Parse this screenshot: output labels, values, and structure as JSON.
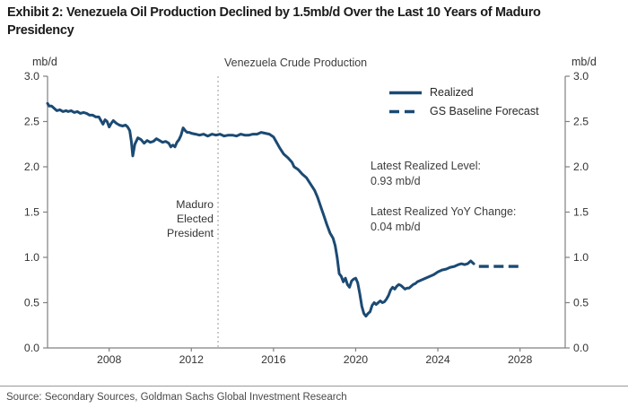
{
  "header": {
    "title_line1": "Exhibit 2: Venezuela Oil Production Declined by 1.5mb/d Over the Last 10 Years of Maduro",
    "title_line2": "Presidency"
  },
  "chart": {
    "title": "Venezuela Crude Production",
    "unit_left": "mb/d",
    "unit_right": "mb/d"
  },
  "annotations": {
    "level_label": "Latest Realized Level:",
    "level_value": "0.93 mb/d",
    "yoy_label": "Latest Realized YoY Change:",
    "yoy_value": "0.04 mb/d"
  },
  "source": {
    "text": "Source: Secondary Sources, Goldman Sachs Global Investment Research"
  },
  "colors": {
    "line": "#1b4a73",
    "axis": "#808080",
    "tick_text": "#333333",
    "event_line": "#999999"
  },
  "chart_data": {
    "type": "line",
    "title": "Venezuela Crude Production",
    "ylabel": "mb/d",
    "xlim": [
      2005.0,
      2030.2
    ],
    "ylim": [
      0.0,
      3.0
    ],
    "x_ticks": [
      "2008",
      "2012",
      "2016",
      "2020",
      "2024",
      "2028"
    ],
    "y_ticks": [
      "0.0",
      "0.5",
      "1.0",
      "1.5",
      "2.0",
      "2.5",
      "3.0"
    ],
    "grid": false,
    "legend_position": "upper-right-inside",
    "event_line": {
      "x": 2013.3,
      "label_lines": [
        "Maduro",
        "Elected",
        "President"
      ]
    },
    "series": [
      {
        "name": "Realized",
        "style": "solid",
        "color": "#1b4a73",
        "points": [
          [
            2005.0,
            2.7
          ],
          [
            2005.08,
            2.67
          ],
          [
            2005.2,
            2.67
          ],
          [
            2005.3,
            2.65
          ],
          [
            2005.45,
            2.62
          ],
          [
            2005.6,
            2.63
          ],
          [
            2005.75,
            2.61
          ],
          [
            2005.9,
            2.62
          ],
          [
            2006.0,
            2.61
          ],
          [
            2006.15,
            2.62
          ],
          [
            2006.3,
            2.6
          ],
          [
            2006.45,
            2.61
          ],
          [
            2006.6,
            2.59
          ],
          [
            2006.75,
            2.6
          ],
          [
            2006.9,
            2.59
          ],
          [
            2007.05,
            2.57
          ],
          [
            2007.2,
            2.57
          ],
          [
            2007.35,
            2.55
          ],
          [
            2007.5,
            2.55
          ],
          [
            2007.6,
            2.51
          ],
          [
            2007.7,
            2.47
          ],
          [
            2007.8,
            2.52
          ],
          [
            2007.9,
            2.5
          ],
          [
            2008.0,
            2.44
          ],
          [
            2008.1,
            2.48
          ],
          [
            2008.2,
            2.51
          ],
          [
            2008.35,
            2.48
          ],
          [
            2008.5,
            2.46
          ],
          [
            2008.65,
            2.45
          ],
          [
            2008.8,
            2.46
          ],
          [
            2008.9,
            2.44
          ],
          [
            2009.0,
            2.4
          ],
          [
            2009.08,
            2.28
          ],
          [
            2009.15,
            2.12
          ],
          [
            2009.25,
            2.25
          ],
          [
            2009.4,
            2.32
          ],
          [
            2009.55,
            2.3
          ],
          [
            2009.7,
            2.26
          ],
          [
            2009.85,
            2.29
          ],
          [
            2010.0,
            2.27
          ],
          [
            2010.15,
            2.28
          ],
          [
            2010.3,
            2.31
          ],
          [
            2010.45,
            2.29
          ],
          [
            2010.6,
            2.27
          ],
          [
            2010.75,
            2.28
          ],
          [
            2010.9,
            2.26
          ],
          [
            2011.0,
            2.22
          ],
          [
            2011.1,
            2.24
          ],
          [
            2011.2,
            2.22
          ],
          [
            2011.3,
            2.27
          ],
          [
            2011.4,
            2.3
          ],
          [
            2011.5,
            2.35
          ],
          [
            2011.6,
            2.43
          ],
          [
            2011.7,
            2.4
          ],
          [
            2011.8,
            2.38
          ],
          [
            2011.9,
            2.38
          ],
          [
            2012.0,
            2.37
          ],
          [
            2012.2,
            2.36
          ],
          [
            2012.4,
            2.35
          ],
          [
            2012.6,
            2.36
          ],
          [
            2012.8,
            2.34
          ],
          [
            2013.0,
            2.36
          ],
          [
            2013.2,
            2.35
          ],
          [
            2013.4,
            2.36
          ],
          [
            2013.6,
            2.34
          ],
          [
            2013.8,
            2.35
          ],
          [
            2014.0,
            2.35
          ],
          [
            2014.2,
            2.34
          ],
          [
            2014.4,
            2.36
          ],
          [
            2014.6,
            2.35
          ],
          [
            2014.8,
            2.35
          ],
          [
            2015.0,
            2.36
          ],
          [
            2015.2,
            2.36
          ],
          [
            2015.4,
            2.38
          ],
          [
            2015.6,
            2.37
          ],
          [
            2015.8,
            2.36
          ],
          [
            2016.0,
            2.33
          ],
          [
            2016.15,
            2.27
          ],
          [
            2016.3,
            2.21
          ],
          [
            2016.5,
            2.14
          ],
          [
            2016.7,
            2.1
          ],
          [
            2016.9,
            2.05
          ],
          [
            2017.0,
            2.0
          ],
          [
            2017.2,
            1.97
          ],
          [
            2017.4,
            1.92
          ],
          [
            2017.6,
            1.88
          ],
          [
            2017.8,
            1.81
          ],
          [
            2018.0,
            1.74
          ],
          [
            2018.15,
            1.66
          ],
          [
            2018.3,
            1.56
          ],
          [
            2018.45,
            1.46
          ],
          [
            2018.6,
            1.36
          ],
          [
            2018.75,
            1.27
          ],
          [
            2018.9,
            1.21
          ],
          [
            2019.0,
            1.13
          ],
          [
            2019.1,
            1.0
          ],
          [
            2019.2,
            0.82
          ],
          [
            2019.3,
            0.79
          ],
          [
            2019.4,
            0.73
          ],
          [
            2019.5,
            0.77
          ],
          [
            2019.6,
            0.7
          ],
          [
            2019.7,
            0.67
          ],
          [
            2019.8,
            0.74
          ],
          [
            2019.9,
            0.76
          ],
          [
            2020.0,
            0.77
          ],
          [
            2020.1,
            0.72
          ],
          [
            2020.2,
            0.6
          ],
          [
            2020.3,
            0.46
          ],
          [
            2020.4,
            0.38
          ],
          [
            2020.5,
            0.35
          ],
          [
            2020.6,
            0.38
          ],
          [
            2020.7,
            0.4
          ],
          [
            2020.8,
            0.47
          ],
          [
            2020.9,
            0.5
          ],
          [
            2021.0,
            0.48
          ],
          [
            2021.1,
            0.5
          ],
          [
            2021.2,
            0.52
          ],
          [
            2021.3,
            0.5
          ],
          [
            2021.4,
            0.51
          ],
          [
            2021.5,
            0.54
          ],
          [
            2021.6,
            0.58
          ],
          [
            2021.7,
            0.64
          ],
          [
            2021.8,
            0.67
          ],
          [
            2021.9,
            0.65
          ],
          [
            2022.0,
            0.68
          ],
          [
            2022.1,
            0.7
          ],
          [
            2022.2,
            0.69
          ],
          [
            2022.3,
            0.67
          ],
          [
            2022.4,
            0.65
          ],
          [
            2022.5,
            0.66
          ],
          [
            2022.6,
            0.66
          ],
          [
            2022.7,
            0.68
          ],
          [
            2022.8,
            0.7
          ],
          [
            2022.9,
            0.71
          ],
          [
            2023.0,
            0.73
          ],
          [
            2023.2,
            0.75
          ],
          [
            2023.4,
            0.77
          ],
          [
            2023.6,
            0.79
          ],
          [
            2023.8,
            0.81
          ],
          [
            2024.0,
            0.84
          ],
          [
            2024.2,
            0.86
          ],
          [
            2024.4,
            0.87
          ],
          [
            2024.6,
            0.89
          ],
          [
            2024.8,
            0.9
          ],
          [
            2025.0,
            0.92
          ],
          [
            2025.15,
            0.93
          ],
          [
            2025.3,
            0.92
          ],
          [
            2025.45,
            0.93
          ],
          [
            2025.6,
            0.96
          ],
          [
            2025.75,
            0.93
          ]
        ]
      },
      {
        "name": "GS Baseline Forecast",
        "style": "dashed",
        "color": "#1b4a73",
        "points": [
          [
            2026.0,
            0.9
          ],
          [
            2028.0,
            0.9
          ]
        ]
      }
    ]
  }
}
